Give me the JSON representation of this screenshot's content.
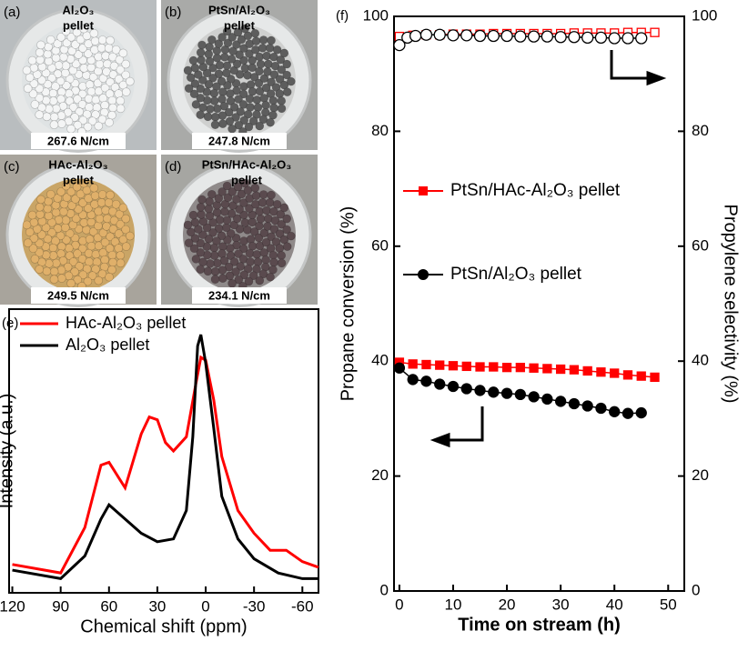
{
  "photos": [
    {
      "panel": "(a)",
      "name": [
        "Al₂O₃",
        "pellet"
      ],
      "strength": "267.6 N/cm"
    },
    {
      "panel": "(b)",
      "name": [
        "PtSn/Al₂O₃",
        "pellet"
      ],
      "strength": "247.8 N/cm"
    },
    {
      "panel": "(c)",
      "name": [
        "HAc-Al₂O₃",
        "pellet"
      ],
      "strength": "249.5 N/cm"
    },
    {
      "panel": "(d)",
      "name": [
        "PtSn/HAc-Al₂O₃",
        "pellet"
      ],
      "strength": "234.1 N/cm"
    }
  ],
  "chart_data": [
    {
      "type": "line",
      "panel": "(e)",
      "xlabel": "Chemical shift (ppm)",
      "ylabel": "Intensity (a.u.)",
      "xlim": [
        122,
        -70
      ],
      "xticks": [
        120,
        90,
        60,
        30,
        0,
        -30,
        -60
      ],
      "ylim": [
        0,
        100
      ],
      "legend": "upper left",
      "series": [
        {
          "name": "HAc-Al₂O₃ pellet",
          "color": "#ff0000",
          "x": [
            120,
            90,
            75,
            65,
            60,
            50,
            40,
            35,
            30,
            25,
            20,
            12,
            6,
            3,
            0,
            -5,
            -10,
            -20,
            -30,
            -40,
            -50,
            -60,
            -70
          ],
          "values": [
            10,
            7,
            23,
            45,
            46,
            37,
            56,
            62,
            61,
            53,
            50,
            55,
            74,
            83,
            82,
            68,
            48,
            29,
            21,
            15,
            15,
            11,
            9
          ]
        },
        {
          "name": "Al₂O₃ pellet",
          "color": "#000000",
          "x": [
            120,
            90,
            75,
            65,
            60,
            50,
            40,
            30,
            20,
            12,
            8,
            5,
            3,
            0,
            -5,
            -10,
            -20,
            -30,
            -45,
            -60,
            -70
          ],
          "values": [
            8,
            5,
            13,
            26,
            31,
            26,
            21,
            18,
            19,
            29,
            55,
            87,
            91,
            81,
            58,
            34,
            19,
            12,
            7,
            5,
            5
          ]
        }
      ]
    },
    {
      "type": "scatter",
      "panel": "(f)",
      "xlabel": "Time on stream (h)",
      "ylabel": "Propane conversion (%)",
      "y2label": "Propylene selectivity (%)",
      "xlim": [
        -1,
        53
      ],
      "xticks": [
        0,
        10,
        20,
        30,
        40,
        50
      ],
      "ylim": [
        0,
        100
      ],
      "yticks": [
        0,
        20,
        40,
        60,
        80,
        100
      ],
      "y2lim": [
        0,
        100
      ],
      "y2ticks": [
        0,
        20,
        40,
        60,
        80,
        100
      ],
      "legend": "center left",
      "series": [
        {
          "name": "PtSn/HAc-Al₂O₃ pellet",
          "color": "#ff0000",
          "marker": "square",
          "filled": true,
          "x": [
            0,
            2.5,
            5,
            7.5,
            10,
            12.5,
            15,
            17.5,
            20,
            22.5,
            25,
            27.5,
            30,
            32.5,
            35,
            37.5,
            40,
            42.5,
            45,
            47.5
          ],
          "values": [
            39.8,
            39.5,
            39.4,
            39.3,
            39.2,
            39.1,
            39.0,
            39.0,
            38.9,
            38.9,
            38.8,
            38.7,
            38.6,
            38.5,
            38.3,
            38.1,
            37.9,
            37.6,
            37.4,
            37.2
          ]
        },
        {
          "name": "PtSn/Al₂O₃ pellet",
          "color": "#000000",
          "marker": "circle",
          "filled": true,
          "x": [
            0,
            2.5,
            5,
            7.5,
            10,
            12.5,
            15,
            17.5,
            20,
            22.5,
            25,
            27.5,
            30,
            32.5,
            35,
            37.5,
            40,
            42.5,
            45
          ],
          "values": [
            38.8,
            36.8,
            36.5,
            36,
            35.6,
            35.2,
            34.9,
            34.6,
            34.4,
            34.2,
            33.8,
            33.4,
            33,
            32.6,
            32.2,
            31.8,
            31.2,
            30.9,
            31.0
          ]
        },
        {
          "color": "#ff0000",
          "marker": "square",
          "filled": false,
          "axis": "y2",
          "x": [
            0,
            2.5,
            5,
            7.5,
            10,
            12.5,
            15,
            17.5,
            20,
            22.5,
            25,
            27.5,
            30,
            32.5,
            35,
            37.5,
            40,
            42.5,
            45,
            47.5
          ],
          "values": [
            96.5,
            96.7,
            96.8,
            96.8,
            96.9,
            96.9,
            96.9,
            97,
            97,
            97,
            97,
            97,
            97,
            97.1,
            97.1,
            97.1,
            97.1,
            97.2,
            97.2,
            97.2
          ]
        },
        {
          "color": "#000000",
          "marker": "circle",
          "filled": false,
          "axis": "y2",
          "x": [
            0,
            1.5,
            3,
            5,
            7.5,
            10,
            12.5,
            15,
            17.5,
            20,
            22.5,
            25,
            27.5,
            30,
            32.5,
            35,
            37.5,
            40,
            42.5,
            45
          ],
          "values": [
            95,
            96.3,
            96.6,
            96.8,
            96.8,
            96.7,
            96.7,
            96.6,
            96.6,
            96.6,
            96.5,
            96.5,
            96.5,
            96.4,
            96.4,
            96.3,
            96.3,
            96.2,
            96.2,
            96.2
          ]
        }
      ]
    }
  ]
}
